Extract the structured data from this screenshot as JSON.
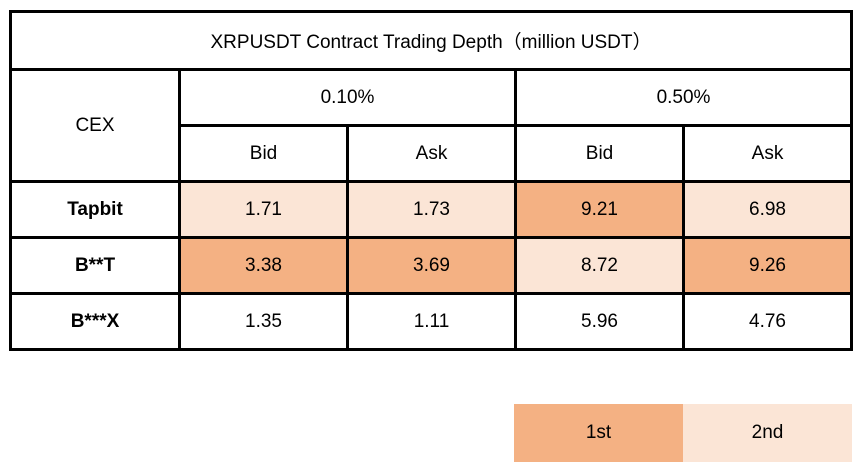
{
  "chart_data": {
    "type": "table",
    "title": "XRPUSDT Contract Trading Depth（million USDT）",
    "row_header": "CEX",
    "depth_groups": [
      "0.10%",
      "0.50%"
    ],
    "sides": [
      "Bid",
      "Ask"
    ],
    "columns": [
      "0.10% Bid",
      "0.10% Ask",
      "0.50% Bid",
      "0.50% Ask"
    ],
    "rows": [
      {
        "cex": "Tapbit",
        "values": [
          "1.71",
          "1.73",
          "9.21",
          "6.98"
        ],
        "rank": [
          2,
          2,
          1,
          2
        ]
      },
      {
        "cex": "B**T",
        "values": [
          "3.38",
          "3.69",
          "8.72",
          "9.26"
        ],
        "rank": [
          1,
          1,
          2,
          1
        ]
      },
      {
        "cex": "B***X",
        "values": [
          "1.35",
          "1.11",
          "5.96",
          "4.76"
        ],
        "rank": [
          0,
          0,
          0,
          0
        ]
      }
    ],
    "legend": [
      {
        "label": "1st",
        "color": "#f4b183"
      },
      {
        "label": "2nd",
        "color": "#fbe5d6"
      }
    ]
  }
}
